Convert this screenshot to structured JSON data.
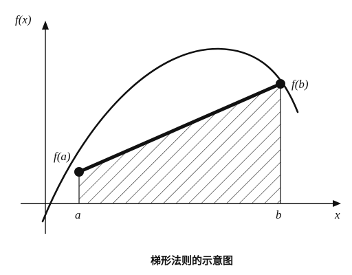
{
  "figure": {
    "y_axis_label": "f(x)",
    "x_axis_label": "x",
    "point_a_label": "f(a)",
    "point_b_label": "f(b)",
    "tick_a_label": "a",
    "tick_b_label": "b",
    "caption": "梯形法则的示意图"
  },
  "colors": {
    "ink": "#111111",
    "background": "#ffffff"
  }
}
